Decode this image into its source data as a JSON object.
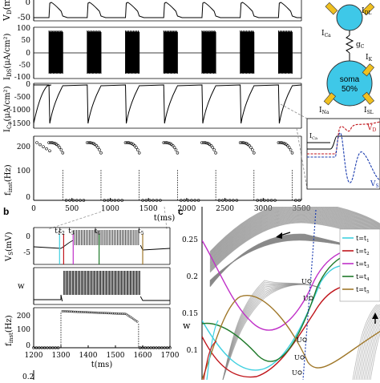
{
  "panel_a": {
    "ylabel_vd": "V",
    "ylabel_vd_sub": "D",
    "ylabel_vd_unit": "(m",
    "ylabel_ids": "I",
    "ylabel_ids_sub": "DS",
    "ylabel_ids_unit": "(μA/cm²)",
    "ylabel_ica": "I",
    "ylabel_ica_sub": "Ca",
    "ylabel_ica_unit": "(μA/cm²)",
    "ylabel_finst": "f",
    "ylabel_finst_sub": "inst",
    "ylabel_finst_unit": "(Hz)",
    "xlabel": "t(ms)",
    "vd_ticks": [
      "0",
      "-50"
    ],
    "ids_ticks": [
      "100",
      "50",
      "0",
      "-50",
      "-100"
    ],
    "ica_ticks": [
      "0",
      "-500",
      "-1000",
      "-1500"
    ],
    "f_ticks": [
      "200",
      "100",
      "0"
    ],
    "x_ticks": [
      "0",
      "500",
      "1000",
      "1500",
      "2000",
      "2500",
      "3000",
      "3500"
    ]
  },
  "schematic": {
    "ica": "I",
    "ica_sub": "Ca",
    "idl": "I",
    "idl_sub": "DL",
    "gc": "g",
    "gc_sub": "C",
    "ik": "I",
    "ik_sub": "K",
    "ina": "I",
    "ina_sub": "Na",
    "isl": "I",
    "isl_sub": "SL",
    "soma": "soma",
    "soma_pct": "50%",
    "inset_ica": "I",
    "inset_ica_sub": "Ca",
    "inset_vd": "V",
    "inset_vd_sub": "D",
    "inset_vs": "V",
    "inset_vs_sub": "S"
  },
  "panel_b": {
    "label": "b",
    "ylabel_vs": "V",
    "ylabel_vs_sub": "S",
    "ylabel_vs_unit": "(mV)",
    "ylabel_w": "w",
    "ylabel_f": "f",
    "ylabel_f_sub": "inst",
    "ylabel_f_unit": "(Hz)",
    "xlabel": "t(ms)",
    "vs_ticks": [
      "0",
      "-5"
    ],
    "f_ticks": [
      "200",
      "100",
      "0"
    ],
    "x_ticks": [
      "1200",
      "1300",
      "1400",
      "1500",
      "1600",
      "1700"
    ],
    "markers": [
      "t",
      "t",
      "t",
      "t",
      "t"
    ],
    "marker_subs": [
      "1",
      "2",
      "3",
      "4",
      "5"
    ],
    "bottom_tick": "0.2"
  },
  "panel_c": {
    "label": "c",
    "ylabel": "w",
    "y_ticks": [
      "0.25",
      "0.2",
      "0.15",
      "0.1"
    ],
    "u_labels": [
      "U",
      "U",
      "U",
      "U",
      "U"
    ],
    "legend": [
      {
        "t": "t=t",
        "sub": "1",
        "color": "#40d0e0"
      },
      {
        "t": "t=t",
        "sub": "2",
        "color": "#c0161c"
      },
      {
        "t": "t=t",
        "sub": "3",
        "color": "#c030c8"
      },
      {
        "t": "t=t",
        "sub": "4",
        "color": "#1f7a2a"
      },
      {
        "t": "t=t",
        "sub": "5",
        "color": "#a0782a"
      }
    ]
  },
  "chart_data": [
    {
      "type": "line",
      "xlabel": "t(ms)",
      "ylabel": "V_D(mV)",
      "xlim": [
        0,
        3500
      ],
      "bursts_start_ms": [
        200,
        700,
        1200,
        1700,
        2200,
        2700,
        3200
      ],
      "values_note": ""
    },
    {
      "type": "line",
      "ylabel": "I_DS(μA/cm²)",
      "ylim": [
        -100,
        100
      ],
      "xlim": [
        0,
        3500
      ]
    },
    {
      "type": "line",
      "ylabel": "I_Ca(μA/cm²)",
      "ylim": [
        -1500,
        0
      ],
      "xlim": [
        0,
        3500
      ]
    },
    {
      "type": "scatter",
      "ylabel": "f_inst(Hz)",
      "xlabel": "t(ms)",
      "xlim": [
        0,
        3500
      ],
      "ylim": [
        0,
        250
      ]
    },
    {
      "type": "line",
      "ylabel": "V_S(mV)",
      "xlim": [
        1200,
        1700
      ]
    },
    {
      "type": "scatter",
      "ylabel": "f_inst(Hz)",
      "xlabel": "t(ms)",
      "xlim": [
        1200,
        1700
      ],
      "ylim": [
        0,
        250
      ]
    },
    {
      "type": "line",
      "ylabel": "w",
      "ylim": [
        0.07,
        0.28
      ],
      "series": [
        {
          "name": "t=t1",
          "color": "#40d0e0"
        },
        {
          "name": "t=t2",
          "color": "#c0161c"
        },
        {
          "name": "t=t3",
          "color": "#c030c8"
        },
        {
          "name": "t=t4",
          "color": "#1f7a2a"
        },
        {
          "name": "t=t5",
          "color": "#a0782a"
        }
      ]
    }
  ]
}
